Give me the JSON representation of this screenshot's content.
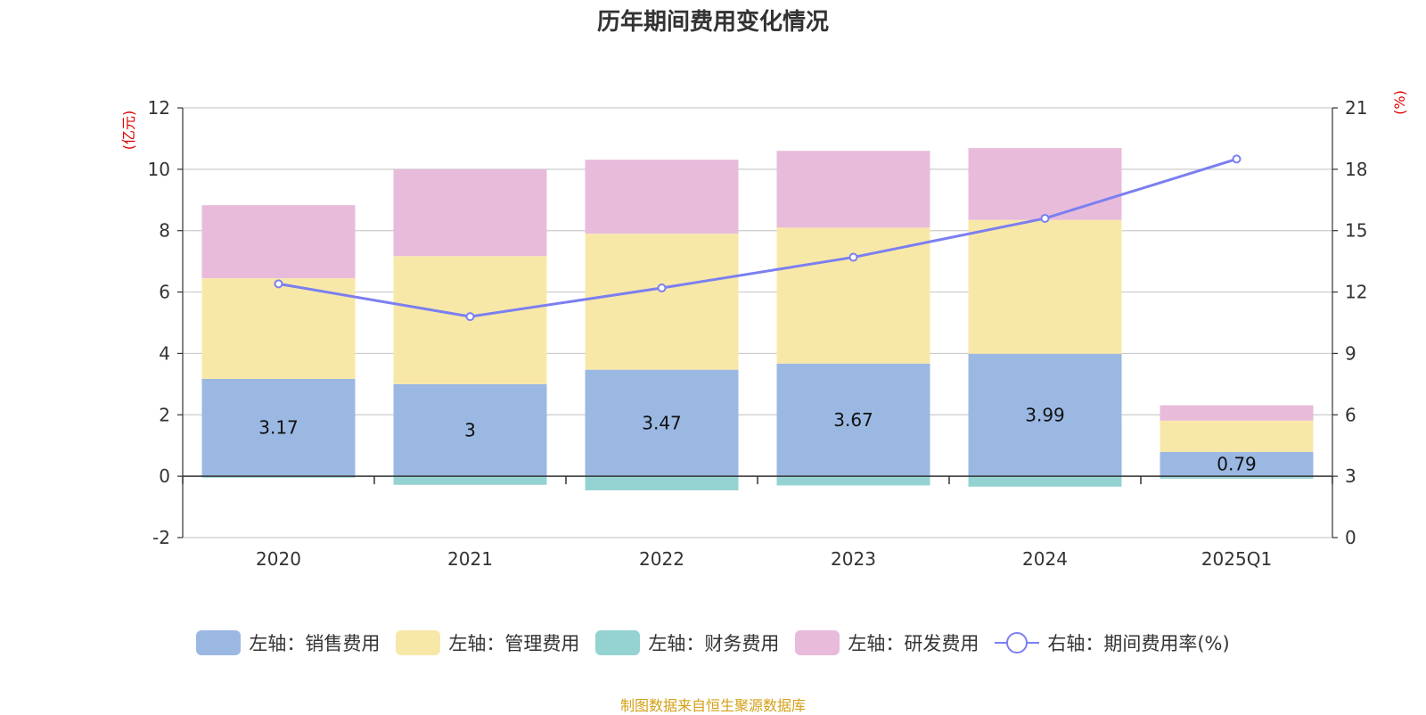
{
  "title": "历年期间费用变化情况",
  "source": "制图数据来自恒生聚源数据库",
  "chart_data": {
    "type": "bar",
    "stacked": true,
    "categories": [
      "2020",
      "2021",
      "2022",
      "2023",
      "2024",
      "2025Q1"
    ],
    "series": [
      {
        "name": "左轴：销售费用",
        "axis": "left",
        "color": "#9bb8e3",
        "values": [
          3.17,
          3.0,
          3.47,
          3.67,
          3.99,
          0.79
        ]
      },
      {
        "name": "左轴：管理费用",
        "axis": "left",
        "color": "#f8e8a8",
        "values": [
          3.28,
          4.17,
          4.43,
          4.43,
          4.36,
          1.02
        ]
      },
      {
        "name": "左轴：财务费用",
        "axis": "left",
        "color": "#95d3d3",
        "values": [
          -0.05,
          -0.28,
          -0.46,
          -0.3,
          -0.34,
          -0.08
        ]
      },
      {
        "name": "左轴：研发费用",
        "axis": "left",
        "color": "#e8bbdb",
        "values": [
          2.38,
          2.83,
          2.41,
          2.5,
          2.34,
          0.5
        ]
      }
    ],
    "line_series": {
      "name": "右轴：期间费用率(%)",
      "axis": "right",
      "color": "#7b7ff0",
      "values": [
        12.4,
        10.8,
        12.2,
        13.7,
        15.6,
        18.5
      ]
    },
    "data_labels": [
      "3.17",
      "3",
      "3.47",
      "3.67",
      "3.99",
      "0.79"
    ],
    "y_left": {
      "label": "(亿元)",
      "min": -2,
      "max": 12,
      "ticks": [
        "-2",
        "0",
        "2",
        "4",
        "6",
        "8",
        "10",
        "12"
      ]
    },
    "y_right": {
      "label": "(%)",
      "min": 0,
      "max": 21,
      "ticks": [
        "0",
        "3",
        "6",
        "9",
        "12",
        "15",
        "18",
        "21"
      ]
    },
    "grid": true,
    "legend_position": "bottom"
  }
}
